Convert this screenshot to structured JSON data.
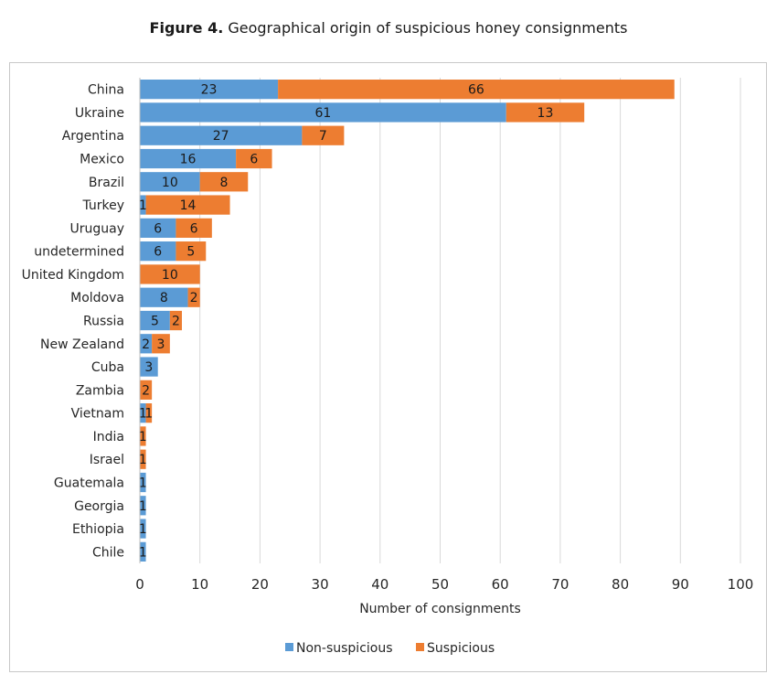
{
  "figure": {
    "label": "Figure 4.",
    "caption": " Geographical origin of suspicious honey consignments"
  },
  "chart_data": {
    "type": "bar",
    "orientation": "horizontal",
    "stacked": true,
    "categories": [
      "China",
      "Ukraine",
      "Argentina",
      "Mexico",
      "Brazil",
      "Turkey",
      "Uruguay",
      "undetermined",
      "United Kingdom",
      "Moldova",
      "Russia",
      "New Zealand",
      "Cuba",
      "Zambia",
      "Vietnam",
      "India",
      "Israel",
      "Guatemala",
      "Georgia",
      "Ethiopia",
      "Chile"
    ],
    "series": [
      {
        "name": "Non-suspicious",
        "color": "#5b9bd5",
        "values": [
          23,
          61,
          27,
          16,
          10,
          1,
          6,
          6,
          0,
          8,
          5,
          2,
          3,
          0,
          1,
          0,
          0,
          1,
          1,
          1,
          1
        ]
      },
      {
        "name": "Suspicious",
        "color": "#ed7d31",
        "values": [
          66,
          13,
          7,
          6,
          8,
          14,
          6,
          5,
          10,
          2,
          2,
          3,
          0,
          2,
          1,
          1,
          1,
          0,
          0,
          0,
          0
        ]
      }
    ],
    "xlabel": "Number of consignments",
    "xlim": [
      0,
      100
    ],
    "xticks": [
      "0",
      "10",
      "20",
      "30",
      "40",
      "50",
      "60",
      "70",
      "80",
      "90",
      "100"
    ],
    "grid": "vertical",
    "legend_position": "bottom"
  }
}
